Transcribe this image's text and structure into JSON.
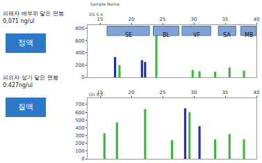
{
  "chart_data": [
    {
      "type": "bar",
      "title": "Sample Name",
      "subtitle": "OS 5.4",
      "annotations": [
        "피해자 배부위 닿은 면봉",
        "0,071 ng/ul",
        "정액"
      ],
      "regions": [
        {
          "label": "SE",
          "x0": 16.1,
          "x1": 22.9
        },
        {
          "label": "BL",
          "x0": 23.5,
          "x1": 27.6
        },
        {
          "label": "VF",
          "x0": 28.1,
          "x1": 32.7
        },
        {
          "label": "SA",
          "x0": 33.9,
          "x1": 36.7
        },
        {
          "label": "MB",
          "x0": 37.5,
          "x1": 40
        }
      ],
      "series": [
        {
          "color": "#1f2fb0",
          "x": [
            17.4,
            21.7,
            22.2
          ],
          "values": [
            330,
            280,
            250
          ]
        },
        {
          "color": "#3cb83c",
          "x": [
            18.1,
            24.0,
            29.8,
            30.9,
            33.4,
            35.7,
            38.0
          ],
          "values": [
            200,
            800,
            120,
            100,
            90,
            160,
            110
          ]
        }
      ],
      "xlim": [
        13,
        40
      ],
      "xticks": [
        15,
        20,
        25,
        30,
        35,
        40
      ],
      "ylim": [
        0,
        850
      ],
      "yticks": [
        0,
        200,
        400,
        600,
        800
      ],
      "grid": false
    },
    {
      "type": "bar",
      "subtitle": "OS 5.5",
      "annotations": [
        "피의자 성기 닿은 면봉",
        "0.427ng/ul",
        "질액"
      ],
      "series": [
        {
          "color": "#1f2fb0",
          "x": [
            28.6,
            30.9
          ],
          "values": [
            650,
            420
          ]
        },
        {
          "color": "#3cb83c",
          "x": [
            15.7,
            17.7,
            22.2,
            26.5,
            29.3,
            33.4,
            35.7,
            38.0
          ],
          "values": [
            330,
            470,
            640,
            240,
            600,
            250,
            320,
            250
          ]
        }
      ],
      "xlim": [
        13,
        40
      ],
      "xticks": [
        15,
        20,
        25,
        30,
        35,
        40
      ],
      "ylim": [
        0,
        780
      ],
      "yticks": [
        0,
        100,
        200,
        300,
        400,
        500,
        600,
        700
      ],
      "grid": false
    }
  ]
}
